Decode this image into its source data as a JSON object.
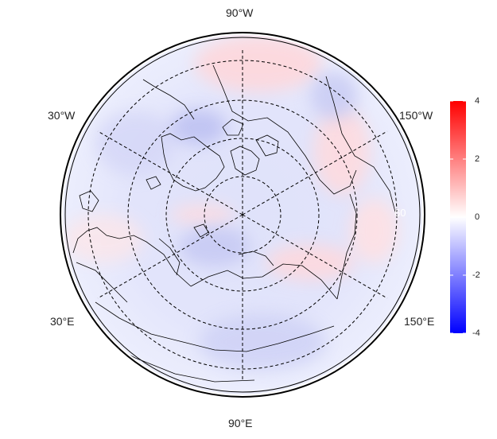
{
  "map": {
    "projection": "north polar stereographic",
    "lon_labels": {
      "top": "90°W",
      "upper_left": "30°W",
      "upper_right": "150°W",
      "lower_left": "30°E",
      "lower_right": "150°E",
      "bottom": "90°E"
    },
    "graticule": {
      "style": "dashed",
      "rings": 4,
      "meridian_spokes": 6
    },
    "ring_label": "60"
  },
  "colorbar": {
    "min": -4,
    "max": 4,
    "ticks": [
      "4",
      "2",
      "0",
      "-2",
      "-4"
    ],
    "colors": {
      "high": "#ff0000",
      "mid": "#ffffff",
      "low": "#0000ff"
    }
  },
  "colors": {
    "background": "#ffffff",
    "ocean_field": "#e4e6fb",
    "coastline": "#000000"
  }
}
